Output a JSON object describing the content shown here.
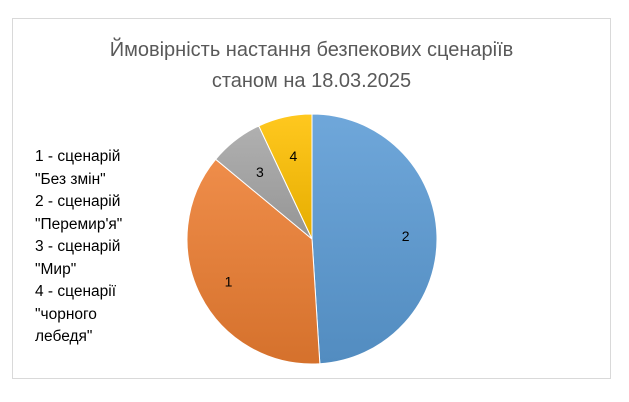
{
  "chart_data": {
    "type": "pie",
    "title_lines": [
      "Ймовірність настання безпекових сценаріїв",
      "станом на 18.03.2025"
    ],
    "legend_lines": [
      "1 - сценарій",
      "\"Без змін\"",
      "2 - сценарій",
      "\"Перемир'я\"",
      "3 - сценарій",
      "\"Мир\"",
      "4 - сценарії",
      "\"чорного",
      "лебедя\""
    ],
    "slices": [
      {
        "label": "2",
        "value": 49,
        "color": "#5b9bd5"
      },
      {
        "label": "1",
        "value": 37,
        "color": "#ed7d31"
      },
      {
        "label": "3",
        "value": 7,
        "color": "#a5a5a5"
      },
      {
        "label": "4",
        "value": 7,
        "color": "#ffc000"
      }
    ],
    "start": "12 o'clock",
    "direction": "clockwise",
    "legend_position": "left"
  }
}
